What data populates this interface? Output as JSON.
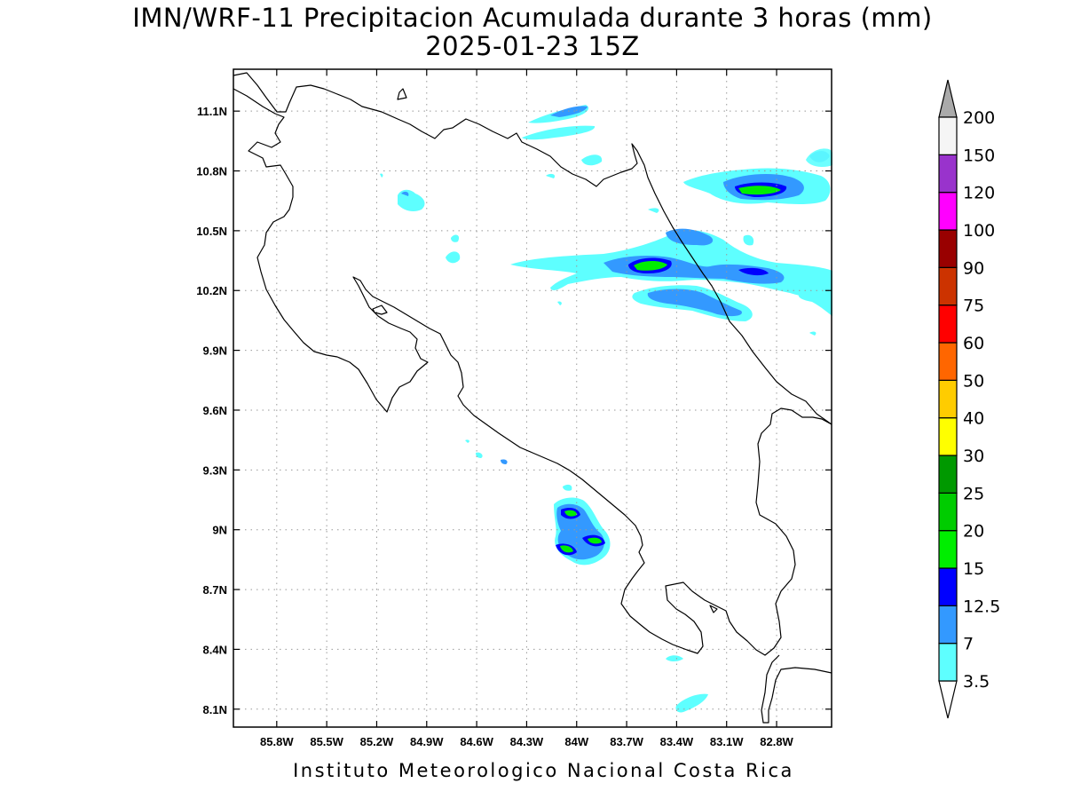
{
  "title": {
    "line1": "IMN/WRF-11 Precipitacion Acumulada durante 3 horas (mm)",
    "line2": "2025-01-23 15Z"
  },
  "footer": "Instituto Meteorologico Nacional Costa Rica",
  "map": {
    "lon_range": [
      -86.06,
      -82.47
    ],
    "lat_range": [
      8.01,
      11.31
    ],
    "lon_labels": [
      "85.8W",
      "85.5W",
      "85.2W",
      "84.9W",
      "84.6W",
      "84.3W",
      "84W",
      "83.7W",
      "83.4W",
      "83.1W",
      "82.8W"
    ],
    "lon_values": [
      -85.8,
      -85.5,
      -85.2,
      -84.9,
      -84.6,
      -84.3,
      -84.0,
      -83.7,
      -83.4,
      -83.1,
      -82.8
    ],
    "lat_labels": [
      "11.1N",
      "10.8N",
      "10.5N",
      "10.2N",
      "9.9N",
      "9.6N",
      "9.3N",
      "9N",
      "8.7N",
      "8.4N",
      "8.1N"
    ],
    "lat_values": [
      11.1,
      10.8,
      10.5,
      10.2,
      9.9,
      9.6,
      9.3,
      9.0,
      8.7,
      8.4,
      8.1
    ],
    "grid": "dotted"
  },
  "colorbar": {
    "labels": [
      "3.5",
      "7",
      "12.5",
      "15",
      "20",
      "25",
      "30",
      "40",
      "50",
      "60",
      "75",
      "90",
      "100",
      "120",
      "150",
      "200"
    ],
    "colors": [
      "#ffffff",
      "#5effff",
      "#3399ff",
      "#0000ff",
      "#00ee00",
      "#00cc00",
      "#009900",
      "#ffff00",
      "#ffcc00",
      "#ff6600",
      "#ff0000",
      "#cc3300",
      "#990000",
      "#ff00ff",
      "#9933cc",
      "#f5f5f5",
      "#aaaaaa"
    ]
  },
  "precip_colors": {
    "light": "#5effff",
    "moderate": "#3399ff",
    "heavy": "#0000ff",
    "very_heavy": "#00ee00",
    "extreme": "#00cc00"
  }
}
